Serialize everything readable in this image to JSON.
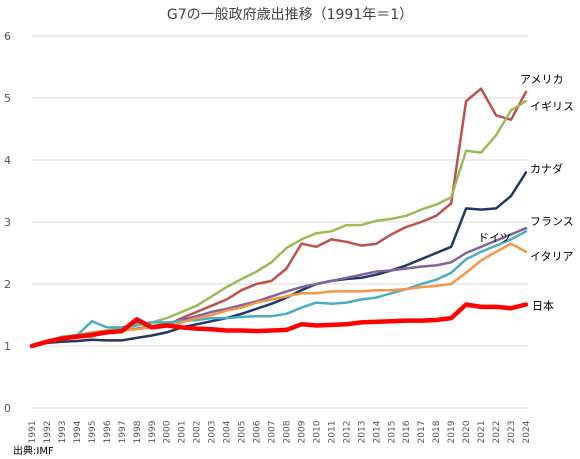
{
  "chart_data": {
    "type": "line",
    "title": "G7の一般政府歳出推移（1991年＝1）",
    "source": "出典:IMF",
    "ylim": [
      0,
      6
    ],
    "yticks": [
      0,
      1,
      2,
      3,
      4,
      5,
      6
    ],
    "grid": true,
    "x": [
      "1991",
      "1992",
      "1993",
      "1994",
      "1995",
      "1996",
      "1997",
      "1998",
      "1999",
      "2000",
      "2001",
      "2002",
      "2003",
      "2004",
      "2005",
      "2006",
      "2007",
      "2008",
      "2009",
      "2010",
      "2011",
      "2012",
      "2013",
      "2014",
      "2015",
      "2016",
      "2017",
      "2018",
      "2019",
      "2020",
      "2021",
      "2022",
      "2023",
      "2024"
    ],
    "series": [
      {
        "name": "アメリカ",
        "color": "#c0504d",
        "width": 2.5,
        "values": [
          1.0,
          1.07,
          1.12,
          1.15,
          1.18,
          1.22,
          1.25,
          1.38,
          1.3,
          1.33,
          1.45,
          1.55,
          1.65,
          1.75,
          1.9,
          2.0,
          2.05,
          2.25,
          2.65,
          2.6,
          2.72,
          2.68,
          2.62,
          2.65,
          2.8,
          2.92,
          3.0,
          3.1,
          3.3,
          4.95,
          5.15,
          4.72,
          4.65,
          5.1
        ]
      },
      {
        "name": "イギリス",
        "color": "#9bbb59",
        "width": 2.5,
        "values": [
          1.0,
          1.08,
          1.15,
          1.18,
          1.22,
          1.25,
          1.28,
          1.33,
          1.38,
          1.45,
          1.55,
          1.65,
          1.8,
          1.95,
          2.08,
          2.2,
          2.35,
          2.58,
          2.72,
          2.82,
          2.85,
          2.95,
          2.95,
          3.02,
          3.05,
          3.1,
          3.2,
          3.28,
          3.4,
          4.15,
          4.12,
          4.4,
          4.8,
          4.95
        ]
      },
      {
        "name": "カナダ",
        "color": "#1f3864",
        "width": 2.5,
        "values": [
          1.0,
          1.05,
          1.07,
          1.08,
          1.1,
          1.09,
          1.09,
          1.13,
          1.17,
          1.22,
          1.3,
          1.35,
          1.4,
          1.45,
          1.52,
          1.6,
          1.68,
          1.78,
          1.9,
          2.0,
          2.05,
          2.08,
          2.1,
          2.15,
          2.22,
          2.3,
          2.4,
          2.5,
          2.6,
          3.22,
          3.2,
          3.22,
          3.42,
          3.8
        ]
      },
      {
        "name": "フランス",
        "color": "#8064a2",
        "width": 2.5,
        "values": [
          1.0,
          1.07,
          1.12,
          1.15,
          1.18,
          1.22,
          1.25,
          1.28,
          1.32,
          1.36,
          1.42,
          1.48,
          1.55,
          1.6,
          1.66,
          1.72,
          1.8,
          1.88,
          1.95,
          2.0,
          2.05,
          2.1,
          2.15,
          2.2,
          2.22,
          2.25,
          2.28,
          2.3,
          2.35,
          2.5,
          2.6,
          2.7,
          2.8,
          2.9
        ]
      },
      {
        "name": "ドイツ",
        "color": "#4bacc6",
        "width": 2.5,
        "values": [
          1.0,
          1.08,
          1.14,
          1.17,
          1.4,
          1.3,
          1.3,
          1.35,
          1.38,
          1.38,
          1.4,
          1.42,
          1.45,
          1.45,
          1.47,
          1.48,
          1.48,
          1.52,
          1.62,
          1.7,
          1.68,
          1.7,
          1.75,
          1.78,
          1.85,
          1.92,
          2.0,
          2.07,
          2.18,
          2.4,
          2.52,
          2.62,
          2.72,
          2.85
        ]
      },
      {
        "name": "イタリア",
        "color": "#f79646",
        "width": 2.5,
        "values": [
          1.0,
          1.07,
          1.12,
          1.13,
          1.15,
          1.22,
          1.25,
          1.27,
          1.3,
          1.32,
          1.38,
          1.45,
          1.5,
          1.57,
          1.62,
          1.7,
          1.75,
          1.8,
          1.85,
          1.85,
          1.88,
          1.88,
          1.88,
          1.9,
          1.9,
          1.92,
          1.95,
          1.97,
          2.0,
          2.18,
          2.38,
          2.52,
          2.65,
          2.52
        ]
      },
      {
        "name": "日本",
        "color": "#ff0000",
        "width": 4.5,
        "values": [
          1.0,
          1.07,
          1.12,
          1.15,
          1.18,
          1.22,
          1.24,
          1.43,
          1.3,
          1.33,
          1.3,
          1.28,
          1.27,
          1.25,
          1.25,
          1.24,
          1.25,
          1.26,
          1.35,
          1.33,
          1.34,
          1.35,
          1.38,
          1.39,
          1.4,
          1.41,
          1.41,
          1.42,
          1.45,
          1.67,
          1.63,
          1.63,
          1.61,
          1.67
        ]
      }
    ]
  }
}
